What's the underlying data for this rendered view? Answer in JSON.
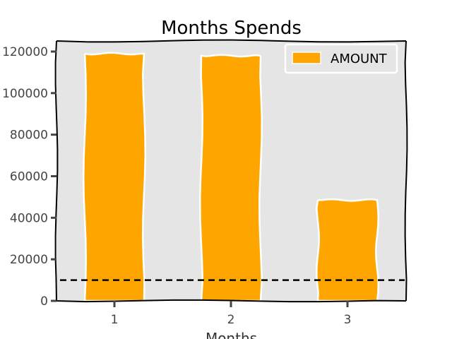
{
  "chart_data": {
    "type": "bar",
    "title": "Months Spends",
    "xlabel": "Months",
    "ylabel": "",
    "categories": [
      "1",
      "2",
      "3"
    ],
    "series": [
      {
        "name": "AMOUNT",
        "values": [
          119000,
          118000,
          48500
        ],
        "color": "#FFA500"
      }
    ],
    "ylim": [
      0,
      120000
    ],
    "yticks": [
      0,
      20000,
      40000,
      60000,
      80000,
      100000,
      120000
    ],
    "ytick_labels": [
      "0",
      "20000",
      "40000",
      "60000",
      "80000",
      "100000",
      "120000"
    ],
    "reference_line": {
      "value": 10000,
      "style": "dashed",
      "color": "#000000"
    },
    "grid": false,
    "legend": "top-right",
    "background_color": "#E5E5E5"
  }
}
